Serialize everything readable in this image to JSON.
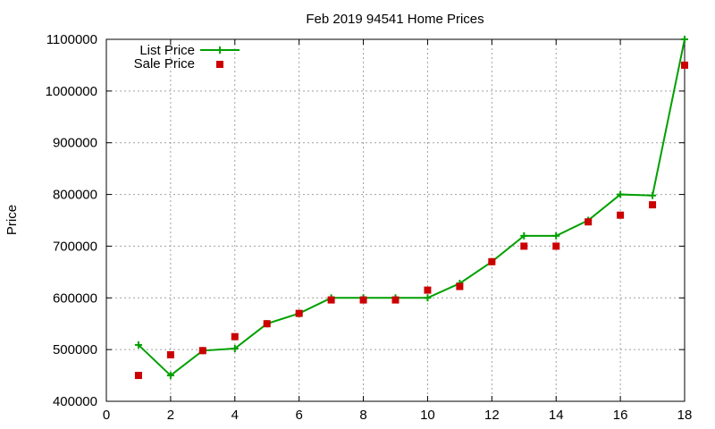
{
  "chart_data": {
    "type": "line",
    "title": "Feb 2019 94541 Home Prices",
    "xlabel": "",
    "ylabel": "Price",
    "xlim": [
      0,
      18
    ],
    "ylim": [
      400000,
      1100000
    ],
    "xticks": [
      0,
      2,
      4,
      6,
      8,
      10,
      12,
      14,
      16,
      18
    ],
    "yticks": [
      400000,
      500000,
      600000,
      700000,
      800000,
      900000,
      1000000,
      1100000
    ],
    "grid": true,
    "legend_position": "top-left",
    "series": [
      {
        "name": "List Price",
        "type": "line",
        "marker": "plus",
        "color": "#00a000",
        "x": [
          1,
          2,
          3,
          4,
          5,
          6,
          7,
          8,
          9,
          10,
          11,
          12,
          13,
          14,
          15,
          16,
          17,
          18
        ],
        "y": [
          509000,
          450000,
          498000,
          502000,
          550000,
          570000,
          600000,
          600000,
          600000,
          600000,
          628000,
          670000,
          720000,
          720000,
          750000,
          800000,
          798000,
          1100000
        ]
      },
      {
        "name": "Sale Price",
        "type": "scatter",
        "marker": "square",
        "color": "#cc0000",
        "x": [
          1,
          2,
          3,
          4,
          5,
          6,
          7,
          8,
          9,
          10,
          11,
          12,
          13,
          14,
          15,
          16,
          17,
          18
        ],
        "y": [
          450000,
          490000,
          498000,
          525000,
          550000,
          570000,
          596000,
          596000,
          596000,
          615000,
          622000,
          670000,
          700000,
          700000,
          747000,
          760000,
          780000,
          1050000
        ]
      }
    ]
  }
}
